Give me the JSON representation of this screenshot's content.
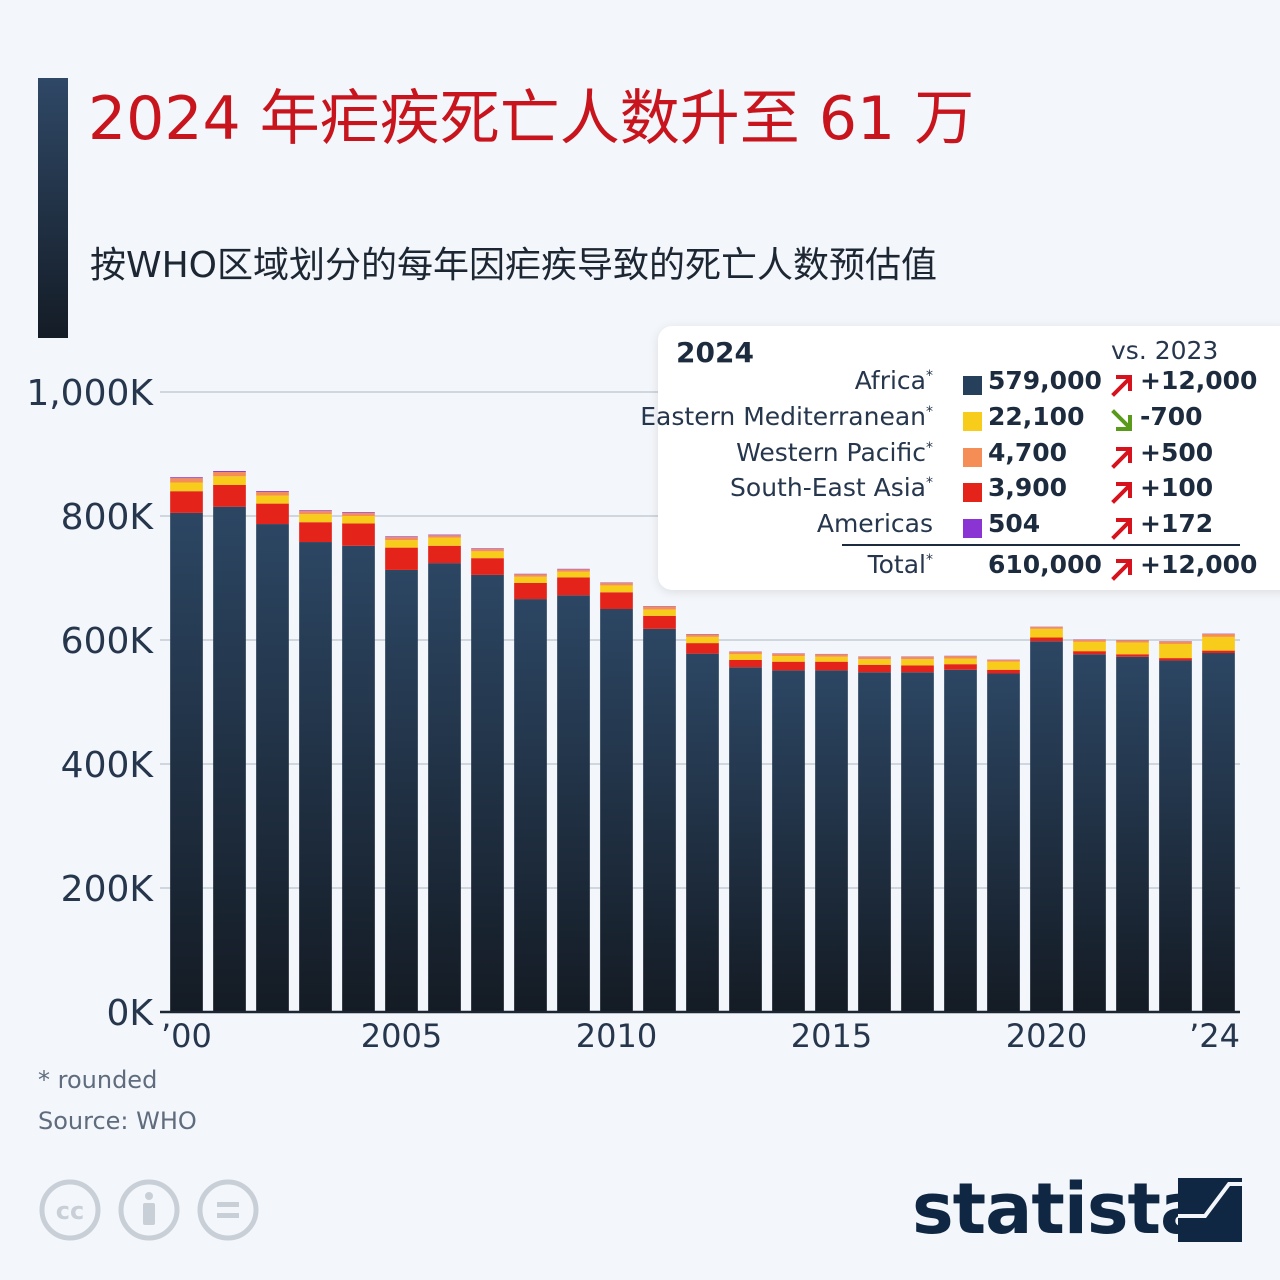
{
  "header": {
    "title": "2024 年疟疾死亡人数升至 61 万",
    "subtitle": "按WHO区域划分的每年因疟疾导致的死亡人数预估值"
  },
  "colors": {
    "background": "#f3f6fa",
    "title": "#c8141c",
    "grid": "#c5cbd3",
    "axis_text": "#26364d"
  },
  "chart_data": {
    "type": "bar",
    "stacked": true,
    "categories": [
      "2000",
      "2001",
      "2002",
      "2003",
      "2004",
      "2005",
      "2006",
      "2007",
      "2008",
      "2009",
      "2010",
      "2011",
      "2012",
      "2013",
      "2014",
      "2015",
      "2016",
      "2017",
      "2018",
      "2019",
      "2020",
      "2021",
      "2022",
      "2023",
      "2024"
    ],
    "x_tick_labels": [
      {
        "index": 0,
        "label": "’00"
      },
      {
        "index": 5,
        "label": "2005"
      },
      {
        "index": 10,
        "label": "2010"
      },
      {
        "index": 15,
        "label": "2015"
      },
      {
        "index": 20,
        "label": "2020"
      },
      {
        "index": 24,
        "label": "’24"
      }
    ],
    "y_ticks": [
      {
        "value": 0,
        "label": "0K"
      },
      {
        "value": 200000,
        "label": "200K"
      },
      {
        "value": 400000,
        "label": "400K"
      },
      {
        "value": 600000,
        "label": "600K"
      },
      {
        "value": 800000,
        "label": "800K"
      },
      {
        "value": 1000000,
        "label": "1,000K"
      }
    ],
    "ylim": [
      0,
      1000000
    ],
    "grid": true,
    "legend_placement": "top-right",
    "series": [
      {
        "name": "Africa",
        "color": "#26405c",
        "values": [
          805000,
          815000,
          787000,
          758000,
          752000,
          713000,
          724000,
          705000,
          666000,
          672000,
          650000,
          618000,
          578000,
          556000,
          551000,
          551000,
          548000,
          548000,
          552000,
          546000,
          598000,
          577000,
          573000,
          567000,
          579000
        ]
      },
      {
        "name": "South-East Asia",
        "color": "#e4241b",
        "values": [
          35000,
          35000,
          33000,
          32000,
          36000,
          36000,
          28000,
          27000,
          26000,
          29000,
          27000,
          21000,
          17000,
          12000,
          14000,
          14000,
          12000,
          11000,
          9000,
          6000,
          6000,
          5000,
          4000,
          3800,
          3900
        ]
      },
      {
        "name": "Eastern Mediterranean",
        "color": "#f7cc1b",
        "values": [
          14000,
          14000,
          13000,
          13000,
          12000,
          12000,
          13000,
          11000,
          10000,
          9000,
          11000,
          10000,
          10000,
          9000,
          9000,
          8000,
          9000,
          10000,
          9000,
          13000,
          14000,
          15000,
          19000,
          22800,
          22100
        ]
      },
      {
        "name": "Western Pacific",
        "color": "#f58e56",
        "values": [
          7000,
          7000,
          6000,
          5000,
          5000,
          5000,
          4000,
          4000,
          4000,
          4000,
          4000,
          5000,
          4000,
          4000,
          4000,
          4000,
          4000,
          4000,
          4000,
          3000,
          3000,
          3500,
          3500,
          4200,
          4700
        ]
      },
      {
        "name": "Americas",
        "color": "#8a34d4",
        "values": [
          1500,
          1500,
          1300,
          1200,
          1200,
          1100,
          1000,
          900,
          800,
          800,
          700,
          600,
          600,
          500,
          500,
          500,
          500,
          500,
          500,
          400,
          400,
          400,
          350,
          332,
          504
        ]
      }
    ],
    "xlabel": "",
    "ylabel": ""
  },
  "legend": {
    "year": "2024",
    "vs_label": "vs. 2023",
    "rows": [
      {
        "name": "Africa",
        "star": "*",
        "color": "#26405c",
        "value": "579,000",
        "change": "+12,000",
        "direction": "up"
      },
      {
        "name": "Eastern Mediterranean",
        "star": "*",
        "color": "#f7cc1b",
        "value": "22,100",
        "change": "-700",
        "direction": "down"
      },
      {
        "name": "Western Pacific",
        "star": "*",
        "color": "#f58e56",
        "value": "4,700",
        "change": "+500",
        "direction": "up"
      },
      {
        "name": "South-East Asia",
        "star": "*",
        "color": "#e4241b",
        "value": "3,900",
        "change": "+100",
        "direction": "up"
      },
      {
        "name": "Americas",
        "star": "",
        "color": "#8a34d4",
        "value": "504",
        "change": "+172",
        "direction": "up"
      }
    ],
    "total": {
      "name": "Total",
      "star": "*",
      "value": "610,000",
      "change": "+12,000",
      "direction": "up"
    }
  },
  "footer": {
    "note": "* rounded",
    "source": "Source: WHO",
    "brand": "statista",
    "license_icons": [
      "cc-icon",
      "attribution-icon",
      "no-derivatives-icon"
    ]
  }
}
